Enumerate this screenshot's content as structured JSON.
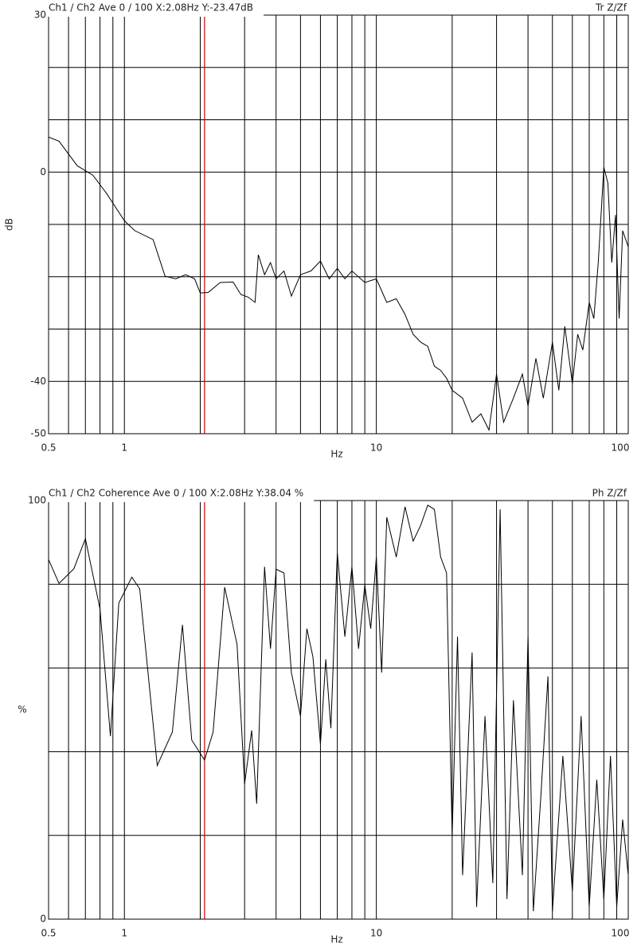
{
  "chart_data": [
    {
      "type": "line",
      "header": "Ch1 / Ch2  Ave 0 / 100  X:2.08Hz  Y:-23.47dB",
      "right_label": "Tr Z/Zf",
      "xlabel": "Hz",
      "ylabel": "dB",
      "log_x": true,
      "color": "#000000",
      "cursor_x": 2.08,
      "cursor_color": "#cc0000",
      "xlim": [
        0.5,
        100
      ],
      "ylim": [
        -50,
        30
      ],
      "xticks": [
        0.5,
        1,
        10,
        100
      ],
      "xgrid": [
        0.6,
        0.7,
        0.8,
        0.9,
        1,
        2,
        3,
        4,
        5,
        6,
        7,
        8,
        9,
        10,
        20,
        30,
        40,
        50,
        60,
        70,
        80,
        90
      ],
      "yticks": [
        30,
        0,
        -40,
        -50
      ],
      "ygrid": [
        30,
        20,
        10,
        0,
        -10,
        -20,
        -30,
        -40,
        -50
      ],
      "x": [
        0.5,
        0.55,
        0.65,
        0.75,
        0.85,
        1.0,
        1.1,
        1.3,
        1.45,
        1.6,
        1.75,
        1.9,
        2.0,
        2.15,
        2.4,
        2.7,
        2.9,
        3.1,
        3.3,
        3.4,
        3.6,
        3.8,
        4.0,
        4.3,
        4.6,
        5.0,
        5.5,
        6.0,
        6.5,
        7.0,
        7.5,
        8.0,
        9,
        10,
        11,
        12,
        13,
        14,
        15,
        16,
        17,
        18,
        19,
        20,
        22,
        24,
        26,
        28,
        30,
        32,
        35,
        38,
        40,
        43,
        46,
        50,
        53,
        56,
        60,
        63,
        66,
        70,
        73,
        76,
        80,
        83,
        86,
        89,
        92,
        95,
        100
      ],
      "values": [
        6.7,
        5.9,
        1.2,
        -0.6,
        -4.1,
        -9.3,
        -11.2,
        -12.9,
        -19.9,
        -20.4,
        -19.6,
        -20.4,
        -23.1,
        -23,
        -21.1,
        -21,
        -23.4,
        -23.9,
        -24.9,
        -15.8,
        -19.6,
        -17.3,
        -20.4,
        -18.9,
        -23.7,
        -19.6,
        -18.9,
        -17,
        -20.4,
        -18.4,
        -20.4,
        -18.9,
        -21.1,
        -20.4,
        -24.9,
        -24.2,
        -27.2,
        -31,
        -32.5,
        -33.3,
        -37.1,
        -37.9,
        -39.4,
        -41.7,
        -43.2,
        -47.8,
        -46.2,
        -49.3,
        -38.6,
        -47.8,
        -43.2,
        -38.6,
        -44.7,
        -35.6,
        -43.2,
        -32.5,
        -41.7,
        -29.5,
        -40.4,
        -31,
        -34,
        -24.9,
        -28,
        -17.3,
        0.9,
        -2.1,
        -17.3,
        -8.2,
        -28,
        -11.2,
        -14.3
      ]
    },
    {
      "type": "line",
      "header": "Ch1 / Ch2  Coherence Ave 0 / 100  X:2.08Hz  Y:38.04 %",
      "right_label": "Ph Z/Zf",
      "xlabel": "Hz",
      "ylabel": "%",
      "log_x": true,
      "color": "#000000",
      "cursor_x": 2.08,
      "cursor_color": "#cc0000",
      "xlim": [
        0.5,
        100
      ],
      "ylim": [
        0,
        100
      ],
      "xticks": [
        0.5,
        1,
        10,
        100
      ],
      "xgrid": [
        0.6,
        0.7,
        0.8,
        0.9,
        1,
        2,
        3,
        4,
        5,
        6,
        7,
        8,
        9,
        10,
        20,
        30,
        40,
        50,
        60,
        70,
        80,
        90
      ],
      "yticks": [
        100,
        0
      ],
      "ygrid": [
        100,
        80,
        60,
        40,
        20,
        0
      ],
      "x": [
        0.5,
        0.55,
        0.63,
        0.7,
        0.8,
        0.88,
        0.95,
        1.07,
        1.15,
        1.35,
        1.55,
        1.7,
        1.85,
        2.08,
        2.25,
        2.5,
        2.8,
        3.0,
        3.2,
        3.35,
        3.6,
        3.8,
        4.0,
        4.3,
        4.6,
        5.0,
        5.3,
        5.6,
        6.0,
        6.3,
        6.6,
        7.0,
        7.5,
        8.0,
        8.5,
        9.0,
        9.5,
        10,
        10.5,
        11,
        12,
        13,
        14,
        15,
        16,
        17,
        18,
        19,
        20,
        21,
        22,
        24,
        25,
        27,
        29,
        31,
        33,
        35,
        38,
        40,
        42,
        45,
        48,
        50,
        55,
        60,
        65,
        70,
        75,
        80,
        85,
        90,
        95,
        100
      ],
      "values": [
        85.9,
        80.2,
        83.7,
        90.9,
        74.1,
        43.7,
        75.5,
        81.7,
        78.9,
        36.7,
        44.7,
        70.3,
        42.8,
        38,
        44.7,
        79.3,
        65.6,
        32.3,
        45.1,
        27.6,
        84.2,
        64.6,
        83.6,
        82.7,
        58.9,
        48.5,
        69.4,
        62.7,
        41.8,
        62.1,
        45.6,
        87.5,
        67.5,
        84.2,
        64.6,
        79.8,
        69.4,
        86.5,
        58.9,
        96,
        86.5,
        98.5,
        90.3,
        94.1,
        98.9,
        97.9,
        86.5,
        82.7,
        20,
        67.5,
        10.5,
        63.7,
        2.9,
        48.5,
        8.6,
        97.9,
        4.8,
        52.3,
        10.5,
        67.5,
        1.9,
        29.5,
        58,
        1.9,
        39,
        6.7,
        48.5,
        2.9,
        33.3,
        4.8,
        39,
        2.9,
        23.8,
        10.5
      ]
    }
  ]
}
